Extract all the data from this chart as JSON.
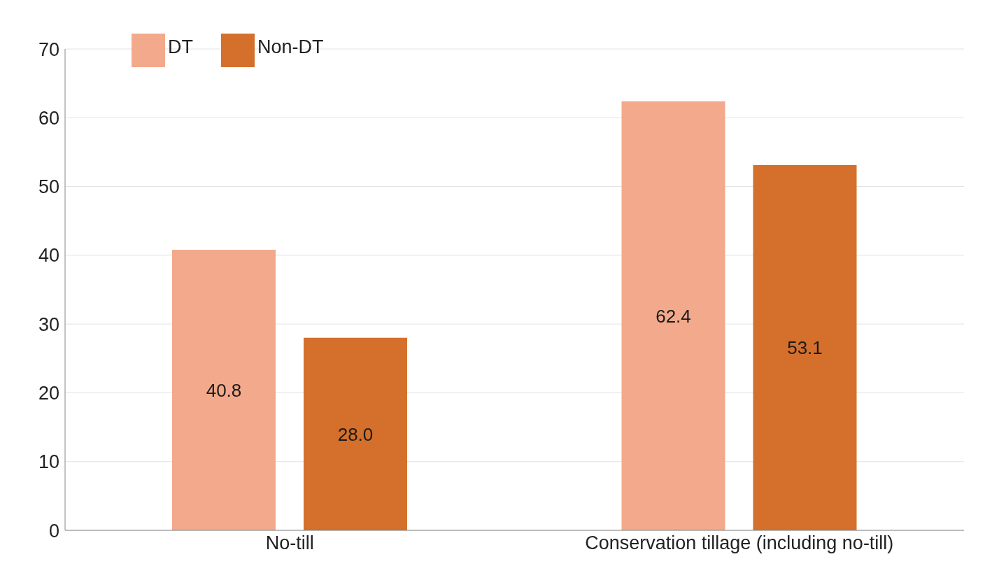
{
  "chart_data": {
    "type": "bar",
    "categories": [
      "No-till",
      "Conservation tillage (including no-till)"
    ],
    "series": [
      {
        "name": "DT",
        "color": "#f3a98b",
        "values": [
          40.8,
          62.4
        ],
        "value_labels": [
          "40.8",
          "62.4"
        ]
      },
      {
        "name": "Non-DT",
        "color": "#d4702b",
        "values": [
          28.0,
          53.1
        ],
        "value_labels": [
          "28.0",
          "53.1"
        ]
      }
    ],
    "ylim": [
      0,
      70
    ],
    "yticks": [
      0,
      10,
      20,
      30,
      40,
      50,
      60,
      70
    ],
    "grid": "y",
    "legend": "top left"
  }
}
